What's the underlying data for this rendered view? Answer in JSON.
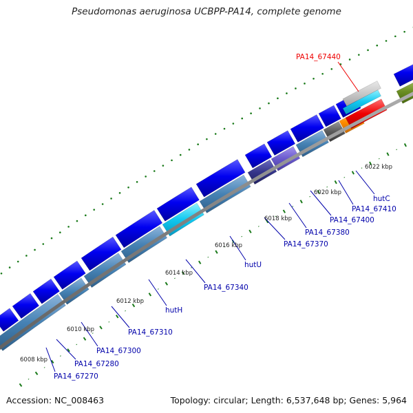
{
  "title": "Pseudomonas aeruginosa UCBPP-PA14, complete genome",
  "footer": {
    "accession": "Accession: NC_008463",
    "summary": "Topology: circular; Length: 6,537,648 bp; Genes: 5,964"
  },
  "scale_labels": [
    "6008 kbp",
    "6010 kbp",
    "6012 kbp",
    "6014 kbp",
    "6016 kbp",
    "6018 kbp",
    "6020 kbp",
    "6022 kbp"
  ],
  "highlight": {
    "label": "PA14_67440",
    "color": "#ee0000"
  },
  "gene_labels": [
    "PA14_67270",
    "PA14_67280",
    "PA14_67300",
    "PA14_67310",
    "hutH",
    "PA14_67340",
    "hutU",
    "PA14_67370",
    "PA14_67380",
    "PA14_67400",
    "PA14_67410",
    "hutC"
  ],
  "colors": {
    "backbone": "#808080",
    "forward_strand": "#0000ee",
    "reverse_strand": "#4682b4",
    "scale_ticks": "#1a7a1a",
    "label_text": "#0000aa",
    "highlight": "#ee0000"
  }
}
